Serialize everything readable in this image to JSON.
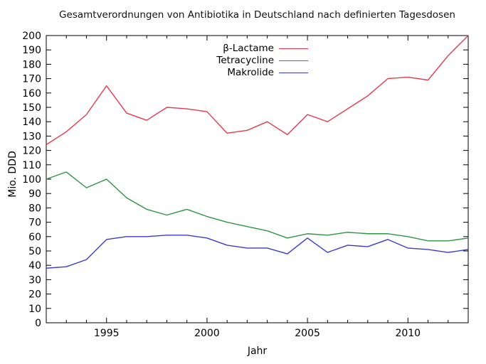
{
  "title": "Gesamtverordnungen von Antibiotika in Deutschland nach definierten Tagesdosen",
  "chart_data": {
    "type": "line",
    "title": "Gesamtverordnungen von Antibiotika in Deutschland nach definierten Tagesdosen",
    "xlabel": "Jahr",
    "ylabel": "Mio. DDD",
    "xlim": [
      1992,
      2013
    ],
    "ylim": [
      0,
      200
    ],
    "ytick_step": 10,
    "xtick_minor_step": 1,
    "xticks_labeled": [
      1995,
      2000,
      2005,
      2010
    ],
    "grid": false,
    "legend_position": "top-center",
    "axis_color": "#000000",
    "x": [
      1992,
      1993,
      1994,
      1995,
      1996,
      1997,
      1998,
      1999,
      2000,
      2001,
      2002,
      2003,
      2004,
      2005,
      2006,
      2007,
      2008,
      2009,
      2010,
      2011,
      2012,
      2013
    ],
    "series": [
      {
        "name": "β-Lactame",
        "color": "#e23b4c",
        "values": [
          124,
          133,
          145,
          165,
          146,
          141,
          150,
          149,
          147,
          132,
          134,
          140,
          131,
          145,
          140,
          149,
          158,
          170,
          171,
          169,
          186,
          200
        ]
      },
      {
        "name": "Tetracycline",
        "color": "#2d9643",
        "values": [
          100,
          105,
          94,
          100,
          87,
          79,
          75,
          79,
          74,
          70,
          67,
          64,
          59,
          62,
          61,
          63,
          62,
          62,
          60,
          57,
          57,
          59
        ]
      },
      {
        "name": "Makrolide",
        "color": "#3c3ccb",
        "values": [
          38,
          39,
          44,
          58,
          60,
          60,
          61,
          61,
          59,
          54,
          52,
          52,
          48,
          59,
          49,
          54,
          53,
          58,
          52,
          51,
          49,
          51
        ]
      }
    ]
  }
}
